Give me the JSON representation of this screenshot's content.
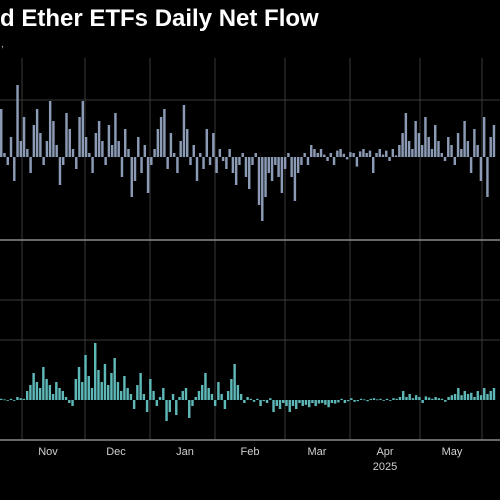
{
  "header": {
    "title": "d Ether ETFs Daily Net Flow"
  },
  "fragment": ",",
  "colors": {
    "background": "#000000",
    "top_bars": "#8c9bb5",
    "bottom_bars": "#5fb8b8",
    "grid": "#3a3a3a",
    "divider": "#8a8a8a",
    "text": "#ffffff"
  },
  "chart_data": [
    {
      "type": "bar",
      "title": "",
      "xlabel": "",
      "ylabel": "",
      "grid": true,
      "ylim": [
        -1,
        1
      ],
      "x_ticks": [
        "Nov",
        "Dec",
        "Jan",
        "Feb",
        "Mar",
        "Apr",
        "May"
      ],
      "x_year_label": "2025",
      "values": [
        0.6,
        0.05,
        -0.1,
        0.25,
        -0.3,
        0.9,
        0.2,
        0.5,
        0.1,
        -0.2,
        0.4,
        0.6,
        0.3,
        -0.1,
        0.2,
        0.7,
        0.45,
        0.15,
        -0.35,
        -0.1,
        0.55,
        0.35,
        0.1,
        -0.15,
        0.5,
        0.7,
        0.25,
        0.05,
        -0.2,
        0.3,
        0.45,
        0.2,
        -0.1,
        0.4,
        0.15,
        0.55,
        0.2,
        -0.25,
        0.35,
        0.1,
        -0.5,
        -0.3,
        0.25,
        -0.2,
        0.15,
        -0.45,
        -0.1,
        0.1,
        0.35,
        0.5,
        0.6,
        -0.15,
        0.3,
        0.05,
        -0.2,
        0.2,
        0.65,
        0.35,
        -0.1,
        0.15,
        -0.3,
        0.05,
        -0.15,
        0.35,
        -0.1,
        0.3,
        -0.2,
        0.1,
        -0.05,
        -0.15,
        0.1,
        -0.2,
        -0.35,
        -0.1,
        0.05,
        -0.25,
        -0.4,
        -0.1,
        0.05,
        -0.6,
        -0.8,
        -0.5,
        -0.2,
        -0.3,
        -0.1,
        -0.25,
        -0.45,
        -0.15,
        0.05,
        -0.25,
        -0.55,
        -0.2,
        -0.1,
        0.05,
        -0.1,
        0.15,
        0.1,
        0.05,
        0.1,
        0.03,
        -0.05,
        0.05,
        -0.1,
        0.08,
        0.1,
        0.04,
        -0.03,
        0.06,
        0.05,
        -0.12,
        0.07,
        0.1,
        0.05,
        0.08,
        -0.2,
        0.05,
        0.1,
        0.03,
        0.08,
        -0.05,
        0.1,
        0.02,
        0.15,
        0.3,
        0.55,
        0.2,
        0.1,
        0.45,
        0.3,
        0.15,
        0.5,
        0.25,
        0.1,
        0.4,
        0.2,
        0.05,
        -0.05,
        0.25,
        0.15,
        -0.1,
        0.3,
        0.1,
        0.45,
        0.2,
        -0.2,
        0.35,
        0.15,
        -0.3,
        0.5,
        -0.5,
        0.25,
        0.4
      ]
    },
    {
      "type": "bar",
      "title": "",
      "xlabel": "",
      "ylabel": "",
      "grid": true,
      "ylim": [
        -1,
        1
      ],
      "x_ticks": [
        "Nov",
        "Dec",
        "Jan",
        "Feb",
        "Mar",
        "Apr",
        "May"
      ],
      "x_year_label": "2025",
      "values": [
        0.02,
        0.01,
        -0.01,
        0.02,
        0.0,
        0.05,
        0.03,
        0.02,
        0.15,
        0.25,
        0.45,
        0.3,
        0.2,
        0.55,
        0.35,
        0.25,
        0.1,
        0.3,
        0.2,
        0.15,
        0.05,
        -0.05,
        -0.1,
        0.35,
        0.55,
        0.3,
        0.75,
        0.4,
        0.2,
        0.95,
        0.5,
        0.3,
        0.6,
        0.25,
        0.45,
        0.7,
        0.3,
        0.15,
        0.4,
        0.2,
        0.1,
        -0.15,
        0.25,
        0.45,
        0.1,
        -0.2,
        0.35,
        0.15,
        -0.1,
        0.05,
        0.2,
        -0.35,
        -0.2,
        0.1,
        -0.25,
        0.05,
        0.15,
        0.2,
        -0.3,
        -0.1,
        0.05,
        0.15,
        0.25,
        0.45,
        0.2,
        0.1,
        -0.1,
        0.3,
        0.1,
        -0.15,
        0.15,
        0.35,
        0.6,
        0.25,
        0.1,
        -0.05,
        0.05,
        0.02,
        -0.03,
        0.02,
        -0.1,
        -0.02,
        -0.05,
        0.03,
        -0.2,
        -0.1,
        -0.15,
        -0.05,
        -0.1,
        -0.2,
        -0.1,
        -0.15,
        -0.05,
        -0.1,
        -0.08,
        -0.12,
        -0.05,
        -0.1,
        -0.06,
        -0.05,
        -0.08,
        -0.12,
        -0.05,
        -0.06,
        -0.04,
        0.02,
        -0.05,
        -0.02,
        0.03,
        -0.03,
        -0.02,
        0.02,
        0.01,
        -0.02,
        0.02,
        0.03,
        0.01,
        0.02,
        -0.01,
        0.02,
        0.0,
        0.03,
        0.02,
        0.05,
        0.15,
        0.05,
        0.1,
        0.03,
        0.08,
        0.05,
        -0.05,
        0.06,
        0.04,
        0.02,
        0.05,
        0.03,
        0.02,
        -0.03,
        0.05,
        0.08,
        0.1,
        0.2,
        0.08,
        0.15,
        0.1,
        0.12,
        0.05,
        0.15,
        0.08,
        0.2,
        0.1,
        0.15,
        0.2
      ]
    }
  ]
}
